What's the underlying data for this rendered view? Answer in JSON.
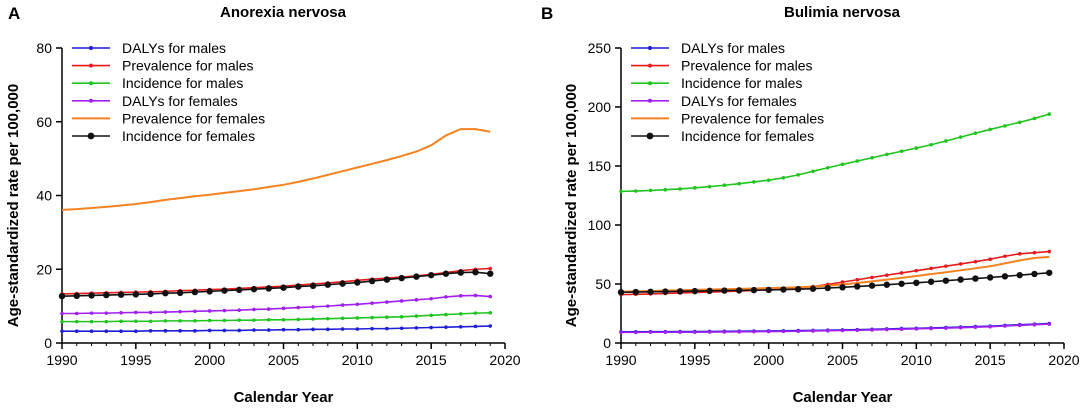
{
  "chart_data": [
    {
      "panel": "A",
      "type": "line",
      "title": "Anorexia nervosa",
      "xlabel": "Calendar Year",
      "ylabel": "Age-standardized rate per 100,000",
      "xlim": [
        1990,
        2020
      ],
      "ylim": [
        0,
        80
      ],
      "xticks": [
        "1990",
        "1995",
        "2000",
        "2005",
        "2010",
        "2015",
        "2020"
      ],
      "yticks": [
        "0",
        "20",
        "40",
        "60",
        "80"
      ],
      "legend_position": "top-left",
      "x": [
        1990,
        1991,
        1992,
        1993,
        1994,
        1995,
        1996,
        1997,
        1998,
        1999,
        2000,
        2001,
        2002,
        2003,
        2004,
        2005,
        2006,
        2007,
        2008,
        2009,
        2010,
        2011,
        2012,
        2013,
        2014,
        2015,
        2016,
        2017,
        2018,
        2019
      ],
      "series": [
        {
          "name": "DALYs for males",
          "color": "#1f1fd6",
          "marker": "dot",
          "values": [
            3.2,
            3.2,
            3.2,
            3.2,
            3.2,
            3.2,
            3.3,
            3.3,
            3.3,
            3.3,
            3.4,
            3.4,
            3.4,
            3.5,
            3.5,
            3.6,
            3.6,
            3.7,
            3.7,
            3.8,
            3.8,
            3.9,
            3.9,
            4.0,
            4.1,
            4.2,
            4.3,
            4.4,
            4.5,
            4.6
          ]
        },
        {
          "name": "Prevalence for males",
          "color": "#e8191c",
          "marker": "dot",
          "values": [
            13.3,
            13.4,
            13.5,
            13.6,
            13.7,
            13.8,
            13.9,
            14.0,
            14.2,
            14.3,
            14.5,
            14.6,
            14.8,
            15.0,
            15.2,
            15.4,
            15.7,
            16.0,
            16.3,
            16.6,
            17.0,
            17.3,
            17.6,
            17.9,
            18.2,
            18.6,
            19.1,
            19.6,
            20.0,
            20.2
          ]
        },
        {
          "name": "Incidence for males",
          "color": "#1fc41f",
          "marker": "dot",
          "values": [
            5.8,
            5.8,
            5.8,
            5.8,
            5.9,
            5.9,
            5.9,
            6.0,
            6.0,
            6.0,
            6.1,
            6.1,
            6.2,
            6.2,
            6.3,
            6.3,
            6.4,
            6.5,
            6.6,
            6.7,
            6.8,
            6.9,
            7.0,
            7.1,
            7.3,
            7.5,
            7.7,
            7.9,
            8.1,
            8.2
          ]
        },
        {
          "name": "DALYs for females",
          "color": "#a020f0",
          "marker": "dot",
          "values": [
            8.0,
            8.0,
            8.1,
            8.1,
            8.2,
            8.3,
            8.3,
            8.4,
            8.5,
            8.6,
            8.7,
            8.8,
            8.9,
            9.1,
            9.2,
            9.4,
            9.6,
            9.8,
            10.0,
            10.3,
            10.5,
            10.8,
            11.1,
            11.4,
            11.7,
            12.0,
            12.5,
            12.8,
            12.9,
            12.6
          ]
        },
        {
          "name": "Prevalence for females",
          "color": "#f58220",
          "marker": "none",
          "values": [
            36.1,
            36.3,
            36.6,
            36.9,
            37.3,
            37.7,
            38.2,
            38.8,
            39.3,
            39.8,
            40.2,
            40.7,
            41.2,
            41.7,
            42.3,
            42.9,
            43.7,
            44.6,
            45.6,
            46.6,
            47.6,
            48.6,
            49.6,
            50.7,
            51.9,
            53.6,
            56.3,
            58.0,
            58.0,
            57.3
          ]
        },
        {
          "name": "Incidence for females",
          "color": "#111111",
          "marker": "bigdot",
          "values": [
            12.7,
            12.8,
            12.9,
            13.0,
            13.1,
            13.2,
            13.3,
            13.5,
            13.6,
            13.8,
            14.0,
            14.2,
            14.4,
            14.6,
            14.8,
            15.0,
            15.3,
            15.5,
            15.8,
            16.1,
            16.4,
            16.8,
            17.2,
            17.6,
            18.0,
            18.4,
            18.8,
            19.1,
            19.2,
            18.8
          ]
        }
      ]
    },
    {
      "panel": "B",
      "type": "line",
      "title": "Bulimia nervosa",
      "xlabel": "Calendar Year",
      "ylabel": "Age-standardized rate per 100,000",
      "xlim": [
        1990,
        2020
      ],
      "ylim": [
        0,
        250
      ],
      "xticks": [
        "1990",
        "1995",
        "2000",
        "2005",
        "2010",
        "2015",
        "2020"
      ],
      "yticks": [
        "0",
        "50",
        "100",
        "150",
        "200",
        "250"
      ],
      "legend_position": "top-left",
      "x": [
        1990,
        1991,
        1992,
        1993,
        1994,
        1995,
        1996,
        1997,
        1998,
        1999,
        2000,
        2001,
        2002,
        2003,
        2004,
        2005,
        2006,
        2007,
        2008,
        2009,
        2010,
        2011,
        2012,
        2013,
        2014,
        2015,
        2016,
        2017,
        2018,
        2019
      ],
      "series": [
        {
          "name": "DALYs for males",
          "color": "#1f1fd6",
          "marker": "dot",
          "values": [
            9.5,
            9.5,
            9.6,
            9.6,
            9.7,
            9.7,
            9.8,
            9.9,
            10.0,
            10.1,
            10.2,
            10.3,
            10.5,
            10.7,
            10.9,
            11.1,
            11.3,
            11.6,
            11.9,
            12.2,
            12.5,
            12.8,
            13.1,
            13.5,
            13.9,
            14.3,
            14.9,
            15.5,
            16.0,
            16.5
          ]
        },
        {
          "name": "Prevalence for males",
          "color": "#e8191c",
          "marker": "dot",
          "values": [
            41.0,
            41.3,
            41.6,
            42.0,
            42.4,
            42.8,
            43.2,
            43.6,
            44.0,
            44.5,
            45.0,
            45.6,
            46.5,
            47.8,
            49.6,
            51.6,
            53.6,
            55.6,
            57.5,
            59.4,
            61.3,
            63.2,
            65.1,
            67.0,
            68.9,
            71.0,
            73.5,
            75.6,
            76.5,
            77.5
          ]
        },
        {
          "name": "Incidence for males",
          "color": "#1fc41f",
          "marker": "dot",
          "values": [
            128.5,
            128.8,
            129.3,
            129.9,
            130.6,
            131.5,
            132.5,
            133.7,
            135.0,
            136.5,
            138.0,
            140.0,
            142.5,
            145.5,
            148.5,
            151.4,
            154.2,
            157.0,
            159.8,
            162.5,
            165.2,
            168.0,
            171.2,
            174.5,
            177.8,
            181.0,
            184.0,
            187.0,
            190.3,
            194.0
          ]
        },
        {
          "name": "DALYs for females",
          "color": "#a020f0",
          "marker": "dot",
          "values": [
            9.0,
            9.0,
            9.1,
            9.1,
            9.2,
            9.2,
            9.3,
            9.4,
            9.5,
            9.6,
            9.7,
            9.8,
            10.0,
            10.2,
            10.4,
            10.6,
            10.8,
            11.1,
            11.4,
            11.7,
            12.0,
            12.3,
            12.6,
            13.0,
            13.4,
            13.8,
            14.4,
            15.0,
            15.5,
            16.0
          ]
        },
        {
          "name": "Prevalence for females",
          "color": "#f58220",
          "marker": "none",
          "values": [
            43.5,
            43.8,
            44.1,
            44.4,
            44.7,
            45.0,
            45.3,
            45.6,
            45.9,
            46.2,
            46.5,
            46.8,
            47.2,
            47.8,
            48.6,
            49.6,
            50.8,
            52.2,
            53.7,
            55.2,
            56.8,
            58.4,
            60.0,
            61.6,
            63.3,
            65.0,
            67.5,
            70.0,
            72.0,
            73.0
          ]
        },
        {
          "name": "Incidence for females",
          "color": "#111111",
          "marker": "bigdot",
          "values": [
            43.0,
            43.2,
            43.4,
            43.6,
            43.8,
            44.0,
            44.2,
            44.4,
            44.6,
            44.8,
            45.0,
            45.3,
            45.6,
            46.0,
            46.6,
            47.2,
            47.9,
            48.6,
            49.4,
            50.2,
            51.0,
            51.9,
            52.8,
            53.7,
            54.6,
            55.5,
            56.5,
            57.5,
            58.5,
            59.5
          ]
        }
      ]
    }
  ]
}
